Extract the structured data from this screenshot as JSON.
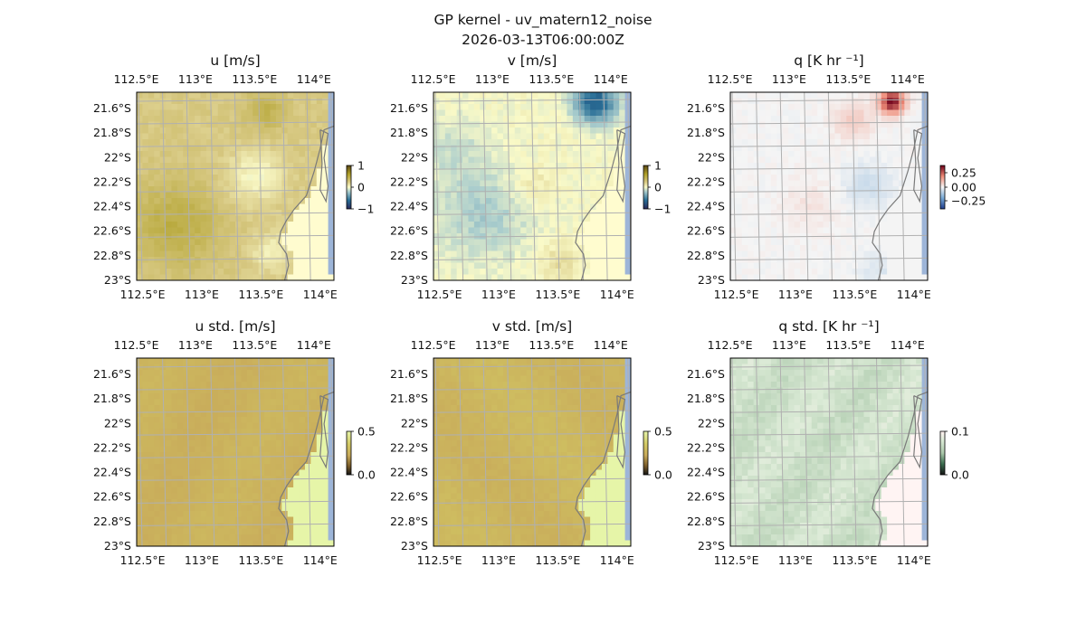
{
  "figure": {
    "title_line1": "GP kernel - uv_matern12_noise",
    "title_line2": "2026-03-13T06:00:00Z"
  },
  "chart_data": [
    {
      "type": "heatmap",
      "title": "u [m/s]",
      "x_ticks": [
        "112.5°E",
        "113°E",
        "113.5°E",
        "114°E"
      ],
      "y_ticks": [
        "21.6°S",
        "21.8°S",
        "22°S",
        "22.2°S",
        "22.4°S",
        "22.6°S",
        "22.8°S",
        "23°S"
      ],
      "colorbar": {
        "ticks": [
          "1",
          "0",
          "−1"
        ],
        "range": [
          -1,
          1
        ],
        "colormap": "brown-yellow-blue-diverging"
      },
      "grid": true,
      "features": [
        "coastline",
        "land mask"
      ]
    },
    {
      "type": "heatmap",
      "title": "v [m/s]",
      "x_ticks": [
        "112.5°E",
        "113°E",
        "113.5°E",
        "114°E"
      ],
      "y_ticks": [
        "21.6°S",
        "21.8°S",
        "22°S",
        "22.2°S",
        "22.4°S",
        "22.6°S",
        "22.8°S",
        "23°S"
      ],
      "colorbar": {
        "ticks": [
          "1",
          "0",
          "−1"
        ],
        "range": [
          -1,
          1
        ],
        "colormap": "brown-yellow-blue-diverging"
      },
      "grid": true,
      "features": [
        "coastline",
        "land mask"
      ]
    },
    {
      "type": "heatmap",
      "title": "q [K hr ⁻¹]",
      "x_ticks": [
        "112.5°E",
        "113°E",
        "113.5°E",
        "114°E"
      ],
      "y_ticks": [
        "21.6°S",
        "21.8°S",
        "22°S",
        "22.2°S",
        "22.4°S",
        "22.6°S",
        "22.8°S",
        "23°S"
      ],
      "colorbar": {
        "ticks": [
          "0.25",
          "0.00",
          "−0.25"
        ],
        "range": [
          -0.35,
          0.35
        ],
        "colormap": "red-white-blue-diverging"
      },
      "grid": true,
      "features": [
        "coastline",
        "land mask"
      ]
    },
    {
      "type": "heatmap",
      "title": "u std. [m/s]",
      "x_ticks": [
        "112.5°E",
        "113°E",
        "113.5°E",
        "114°E"
      ],
      "y_ticks": [
        "21.6°S",
        "21.8°S",
        "22°S",
        "22.2°S",
        "22.4°S",
        "22.6°S",
        "22.8°S",
        "23°S"
      ],
      "colorbar": {
        "ticks": [
          "0.5",
          "0.0"
        ],
        "range": [
          0,
          0.5
        ],
        "colormap": "yellow-brown-sequential"
      },
      "grid": true,
      "features": [
        "coastline",
        "land mask"
      ]
    },
    {
      "type": "heatmap",
      "title": "v std. [m/s]",
      "x_ticks": [
        "112.5°E",
        "113°E",
        "113.5°E",
        "114°E"
      ],
      "y_ticks": [
        "21.6°S",
        "21.8°S",
        "22°S",
        "22.2°S",
        "22.4°S",
        "22.6°S",
        "22.8°S",
        "23°S"
      ],
      "colorbar": {
        "ticks": [
          "0.5",
          "0.0"
        ],
        "range": [
          0,
          0.5
        ],
        "colormap": "yellow-brown-sequential"
      },
      "grid": true,
      "features": [
        "coastline",
        "land mask"
      ]
    },
    {
      "type": "heatmap",
      "title": "q std. [K hr ⁻¹]",
      "x_ticks": [
        "112.5°E",
        "113°E",
        "113.5°E",
        "114°E"
      ],
      "y_ticks": [
        "21.6°S",
        "21.8°S",
        "22°S",
        "22.2°S",
        "22.4°S",
        "22.6°S",
        "22.8°S",
        "23°S"
      ],
      "colorbar": {
        "ticks": [
          "0.1",
          "0.0"
        ],
        "range": [
          0,
          0.12
        ],
        "colormap": "pink-green-sequential"
      },
      "grid": true,
      "features": [
        "coastline",
        "land mask"
      ]
    }
  ]
}
